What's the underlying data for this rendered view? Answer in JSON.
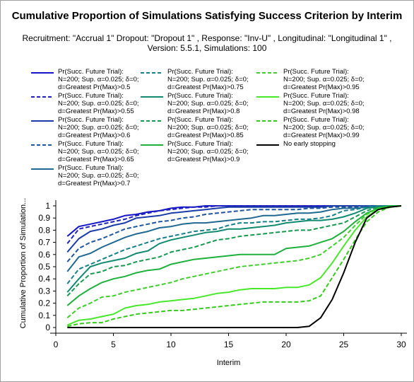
{
  "chart_data": {
    "type": "line",
    "title": "Cumulative Proportion of Simulations Satisfying Success Criterion by Interim",
    "subtitle": "Recruitment: \"Accrual 1\" Dropout: \"Dropout 1\" , Response: \"Inv-U\" , Longitudinal: \"Longitudinal 1\" , Version: 5.5.1, Simulations: 100",
    "xlabel": "Interim",
    "ylabel": "Cumulative Proportion of Simulation...",
    "xlim": [
      0,
      30
    ],
    "ylim": [
      0,
      1
    ],
    "xticks": [
      0,
      5,
      10,
      15,
      20,
      25,
      30
    ],
    "yticks": [
      0,
      0.1,
      0.2,
      0.3,
      0.4,
      0.5,
      0.6,
      0.7,
      0.8,
      0.9,
      1
    ],
    "grid": false,
    "legend_position": "top",
    "x": [
      1,
      2,
      3,
      4,
      5,
      6,
      7,
      8,
      9,
      10,
      11,
      12,
      13,
      14,
      15,
      16,
      17,
      18,
      19,
      20,
      21,
      22,
      23,
      24,
      25,
      26,
      27,
      28,
      29,
      30
    ],
    "series": [
      {
        "name": "Pr(Succ. Future Trial): N=200; Sup. α=0.025; δ=0; d=Greatest Pr(Max)>0.5",
        "color": "#1515c8",
        "dash": "solid",
        "values": [
          0.75,
          0.83,
          0.85,
          0.87,
          0.89,
          0.92,
          0.93,
          0.95,
          0.96,
          0.98,
          0.99,
          0.99,
          1,
          1,
          1,
          1,
          1,
          1,
          1,
          1,
          1,
          1,
          1,
          1,
          1,
          1,
          1,
          1,
          1,
          1
        ]
      },
      {
        "name": "Pr(Succ. Future Trial): N=200; Sup. α=0.025; δ=0; d=Greatest Pr(Max)>0.55",
        "color": "#2222bb",
        "dash": "dashed",
        "values": [
          0.69,
          0.81,
          0.83,
          0.85,
          0.87,
          0.89,
          0.92,
          0.94,
          0.96,
          0.97,
          0.98,
          0.99,
          0.99,
          1,
          1,
          1,
          1,
          1,
          1,
          1,
          1,
          1,
          1,
          1,
          1,
          1,
          1,
          1,
          1,
          1
        ]
      },
      {
        "name": "Pr(Succ. Future Trial): N=200; Sup. α=0.025; δ=0; d=Greatest Pr(Max)>0.6",
        "color": "#1a3aa8",
        "dash": "solid",
        "values": [
          0.62,
          0.73,
          0.79,
          0.81,
          0.84,
          0.86,
          0.9,
          0.91,
          0.92,
          0.94,
          0.95,
          0.96,
          0.97,
          0.98,
          0.99,
          0.99,
          0.99,
          0.99,
          0.99,
          0.99,
          0.99,
          0.99,
          0.99,
          1,
          1,
          1,
          1,
          1,
          1,
          1
        ]
      },
      {
        "name": "Pr(Succ. Future Trial): N=200; Sup. α=0.025; δ=0; d=Greatest Pr(Max)>0.65",
        "color": "#1f55a0",
        "dash": "dashed",
        "values": [
          0.54,
          0.65,
          0.7,
          0.73,
          0.77,
          0.81,
          0.83,
          0.85,
          0.87,
          0.88,
          0.9,
          0.91,
          0.93,
          0.94,
          0.95,
          0.96,
          0.97,
          0.97,
          0.97,
          0.97,
          0.97,
          0.98,
          0.98,
          0.99,
          0.99,
          0.99,
          1,
          1,
          1,
          1
        ]
      },
      {
        "name": "Pr(Succ. Future Trial): N=200; Sup. α=0.025; δ=0; d=Greatest Pr(Max)>0.7",
        "color": "#1e6891",
        "dash": "solid",
        "values": [
          0.46,
          0.58,
          0.61,
          0.66,
          0.7,
          0.74,
          0.77,
          0.79,
          0.82,
          0.83,
          0.85,
          0.86,
          0.86,
          0.87,
          0.88,
          0.89,
          0.9,
          0.92,
          0.92,
          0.93,
          0.94,
          0.94,
          0.95,
          0.97,
          0.98,
          0.98,
          0.99,
          1,
          1,
          1
        ]
      },
      {
        "name": "Pr(Succ. Future Trial): N=200; Sup. α=0.025; δ=0; d=Greatest Pr(Max)>0.75",
        "color": "#16808a",
        "dash": "dashed",
        "values": [
          0.36,
          0.48,
          0.52,
          0.56,
          0.6,
          0.64,
          0.67,
          0.7,
          0.73,
          0.75,
          0.77,
          0.79,
          0.8,
          0.81,
          0.84,
          0.86,
          0.86,
          0.87,
          0.87,
          0.88,
          0.89,
          0.89,
          0.9,
          0.92,
          0.96,
          0.97,
          0.99,
          1,
          1,
          1
        ]
      },
      {
        "name": "Pr(Succ. Future Trial): N=200; Sup. α=0.025; δ=0; d=Greatest Pr(Max)>0.8",
        "color": "#118a70",
        "dash": "solid",
        "values": [
          0.29,
          0.4,
          0.5,
          0.53,
          0.55,
          0.57,
          0.61,
          0.63,
          0.69,
          0.72,
          0.74,
          0.76,
          0.78,
          0.79,
          0.81,
          0.81,
          0.82,
          0.83,
          0.84,
          0.86,
          0.87,
          0.88,
          0.88,
          0.89,
          0.91,
          0.94,
          0.98,
          0.99,
          1,
          1
        ]
      },
      {
        "name": "Pr(Succ. Future Trial): N=200; Sup. α=0.025; δ=0; d=Greatest Pr(Max)>0.85",
        "color": "#169a4f",
        "dash": "dashed",
        "values": [
          0.26,
          0.36,
          0.44,
          0.46,
          0.5,
          0.51,
          0.54,
          0.56,
          0.58,
          0.62,
          0.64,
          0.66,
          0.69,
          0.72,
          0.73,
          0.75,
          0.76,
          0.77,
          0.78,
          0.79,
          0.8,
          0.8,
          0.82,
          0.84,
          0.86,
          0.91,
          0.96,
          0.99,
          1,
          1
        ]
      },
      {
        "name": "Pr(Succ. Future Trial): N=200; Sup. α=0.025; δ=0; d=Greatest Pr(Max)>0.9",
        "color": "#1db03c",
        "dash": "solid",
        "values": [
          0.18,
          0.26,
          0.32,
          0.37,
          0.4,
          0.42,
          0.45,
          0.47,
          0.48,
          0.52,
          0.54,
          0.56,
          0.57,
          0.58,
          0.59,
          0.6,
          0.6,
          0.6,
          0.6,
          0.65,
          0.66,
          0.67,
          0.7,
          0.73,
          0.79,
          0.87,
          0.94,
          0.98,
          1,
          1
        ]
      },
      {
        "name": "Pr(Succ. Future Trial): N=200; Sup. α=0.025; δ=0; d=Greatest Pr(Max)>0.95",
        "color": "#3fcf2c",
        "dash": "dashed",
        "values": [
          0.08,
          0.16,
          0.2,
          0.25,
          0.26,
          0.29,
          0.31,
          0.33,
          0.35,
          0.37,
          0.4,
          0.42,
          0.44,
          0.46,
          0.48,
          0.5,
          0.51,
          0.52,
          0.53,
          0.54,
          0.55,
          0.57,
          0.6,
          0.67,
          0.74,
          0.84,
          0.93,
          0.98,
          0.99,
          1
        ]
      },
      {
        "name": "Pr(Succ. Future Trial): N=200; Sup. α=0.025; δ=0; d=Greatest Pr(Max)>0.98",
        "color": "#47e82a",
        "dash": "solid",
        "values": [
          0.02,
          0.06,
          0.07,
          0.09,
          0.11,
          0.16,
          0.18,
          0.19,
          0.21,
          0.22,
          0.23,
          0.24,
          0.26,
          0.28,
          0.29,
          0.31,
          0.32,
          0.32,
          0.32,
          0.33,
          0.33,
          0.35,
          0.41,
          0.53,
          0.67,
          0.8,
          0.91,
          0.97,
          0.99,
          1
        ]
      },
      {
        "name": "Pr(Succ. Future Trial): N=200; Sup. α=0.025; δ=0; d=Greatest Pr(Max)>0.99",
        "color": "#33cc1a",
        "dash": "dashed",
        "values": [
          0.01,
          0.03,
          0.04,
          0.04,
          0.07,
          0.09,
          0.11,
          0.12,
          0.13,
          0.14,
          0.14,
          0.15,
          0.16,
          0.17,
          0.18,
          0.19,
          0.2,
          0.21,
          0.21,
          0.21,
          0.21,
          0.22,
          0.26,
          0.41,
          0.56,
          0.72,
          0.87,
          0.95,
          0.99,
          1
        ]
      },
      {
        "name": "No early stopping",
        "color": "#000000",
        "dash": "solid",
        "values": [
          0,
          0,
          0,
          0,
          0,
          0,
          0,
          0,
          0,
          0,
          0,
          0,
          0,
          0,
          0,
          0,
          0,
          0,
          0,
          0,
          0,
          0.01,
          0.08,
          0.23,
          0.45,
          0.7,
          0.9,
          0.97,
          0.99,
          1
        ]
      }
    ]
  }
}
